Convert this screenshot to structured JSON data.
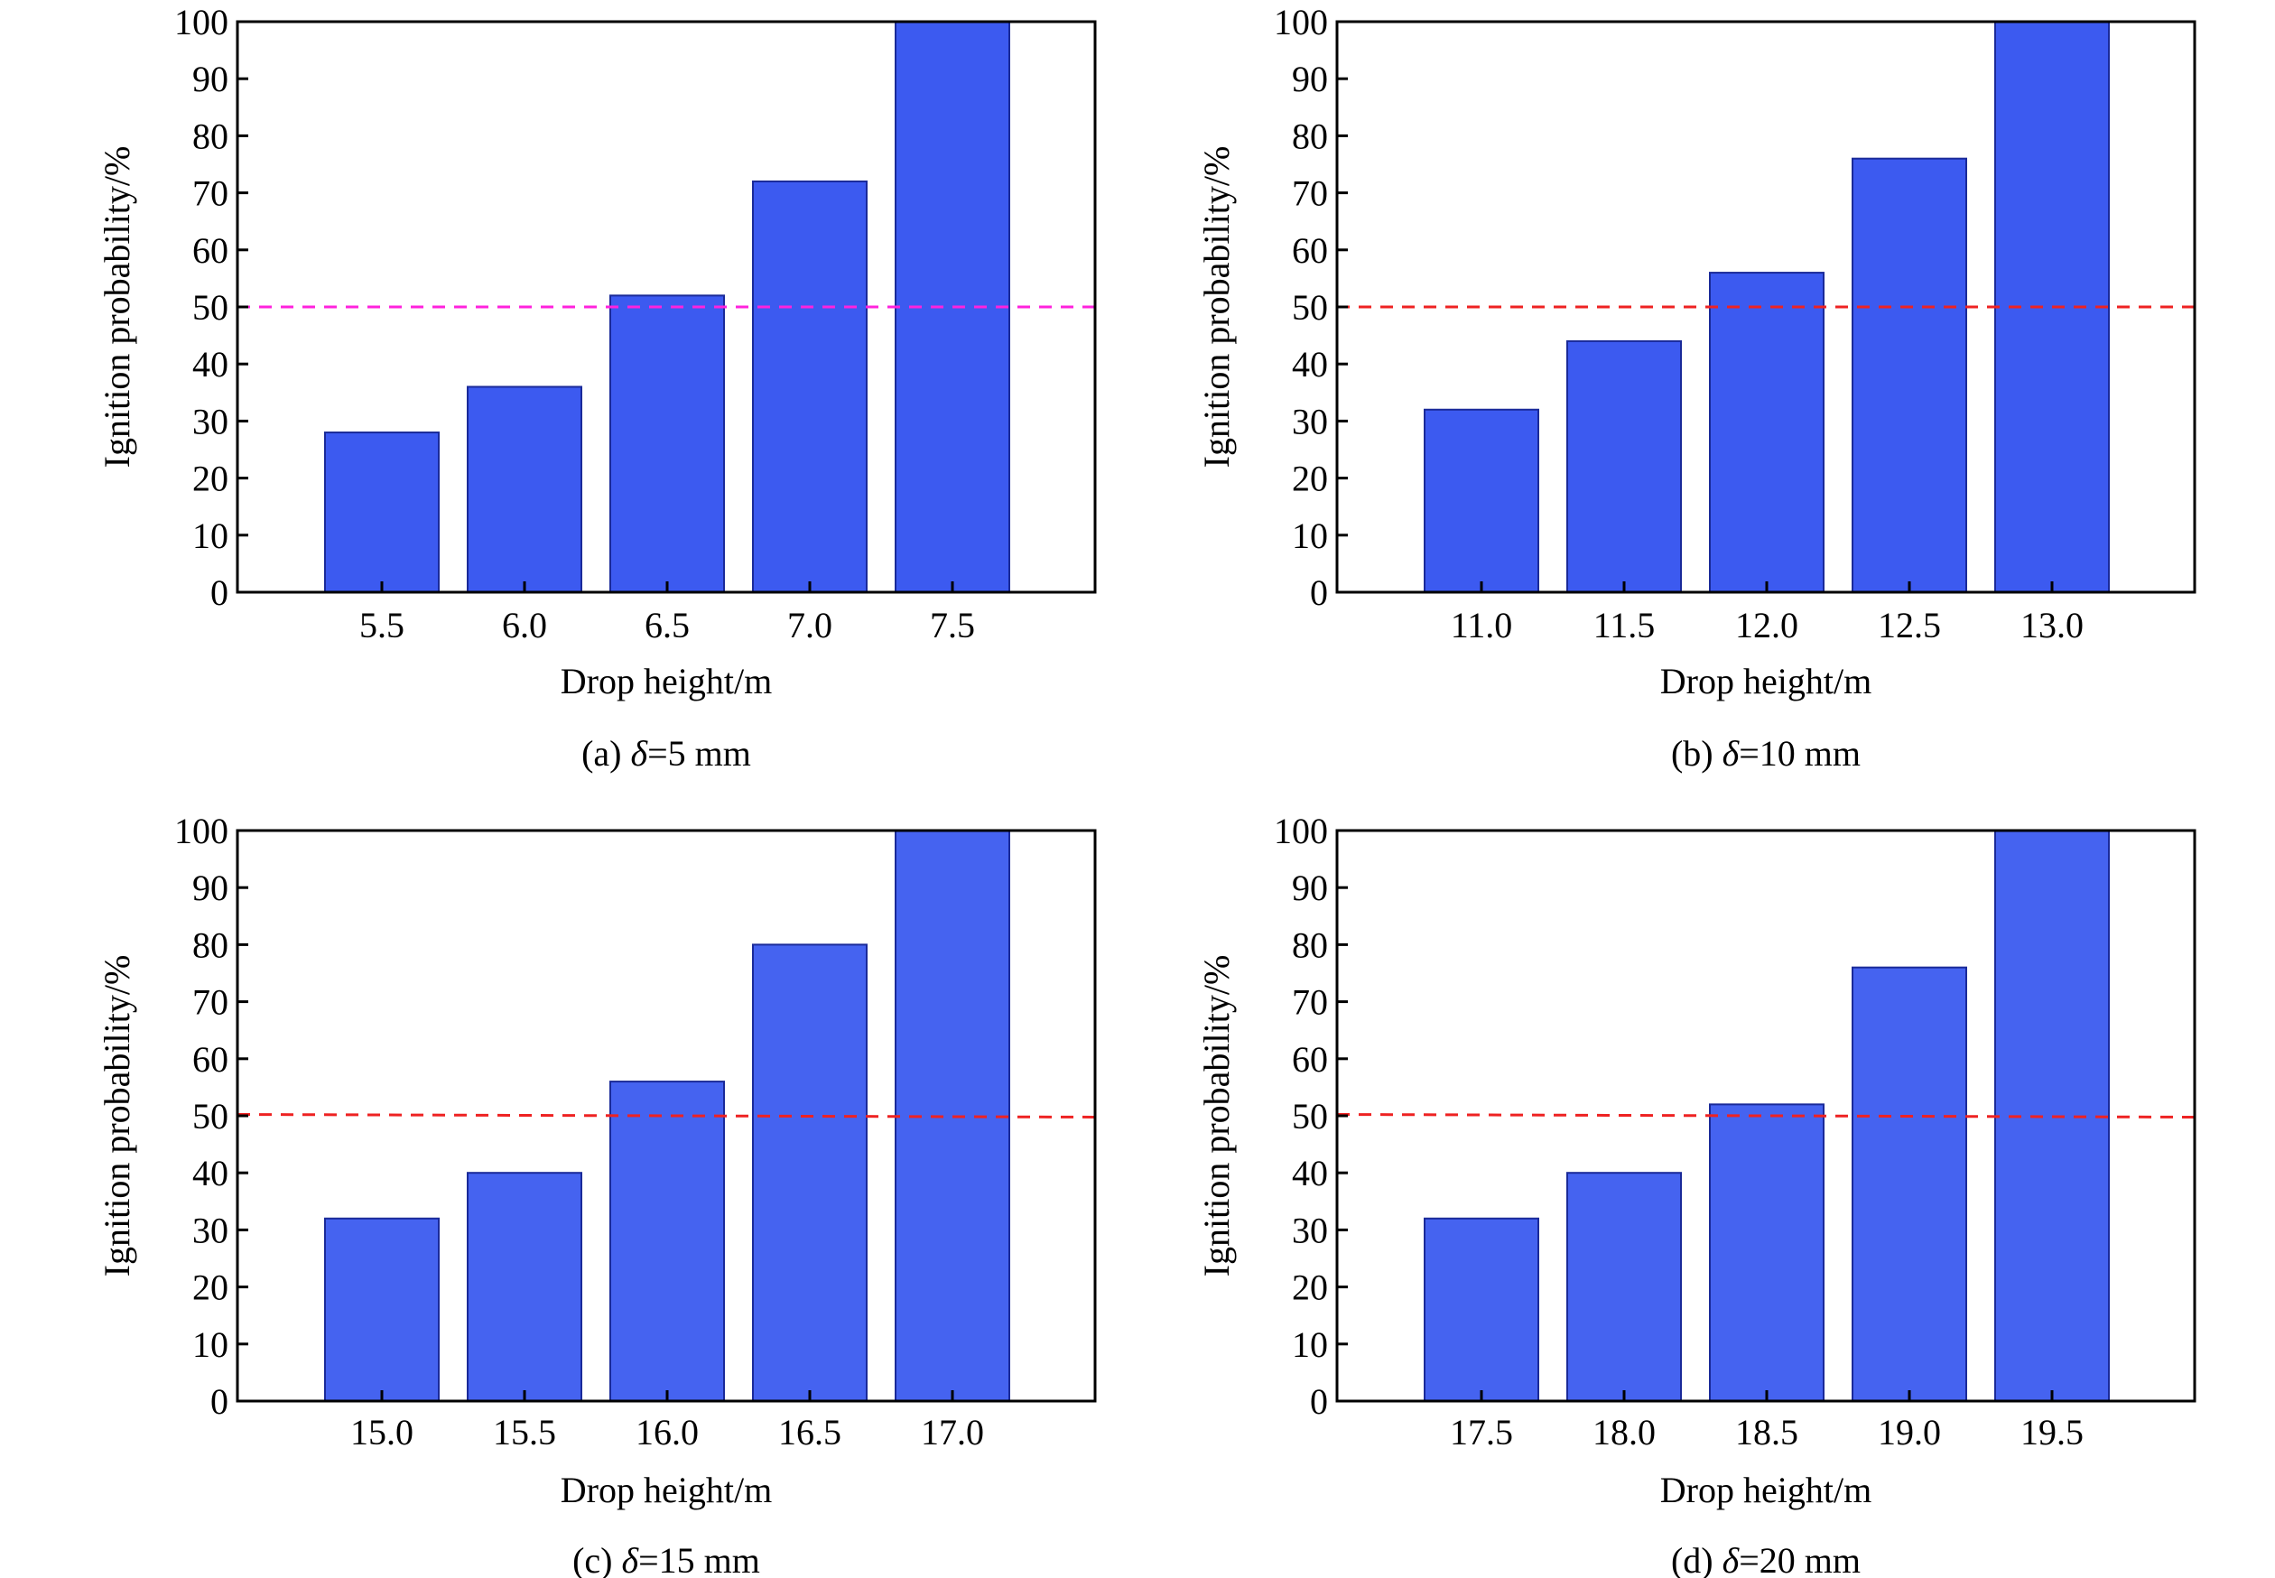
{
  "chart_data": [
    {
      "type": "bar",
      "title": "(a) δ=5 mm",
      "caption_prefix": "(a) ",
      "caption_symbol": "δ",
      "caption_suffix": "=5 mm",
      "xlabel": "Drop height/m",
      "ylabel": "Ignition probability/%",
      "categories": [
        "5.5",
        "6.0",
        "6.5",
        "7.0",
        "7.5"
      ],
      "values": [
        28,
        36,
        52,
        72,
        100
      ],
      "ylim": [
        0,
        100
      ],
      "yticks": [
        0,
        10,
        20,
        30,
        40,
        50,
        60,
        70,
        80,
        90,
        100
      ],
      "reference_line": 50,
      "bar_color": "#3c5af0",
      "line_color": "#ff22dd"
    },
    {
      "type": "bar",
      "title": "(b) δ=10 mm",
      "caption_prefix": "(b) ",
      "caption_symbol": "δ",
      "caption_suffix": "=10 mm",
      "xlabel": "Drop height/m",
      "ylabel": "Ignition probability/%",
      "categories": [
        "11.0",
        "11.5",
        "12.0",
        "12.5",
        "13.0"
      ],
      "values": [
        32,
        44,
        56,
        76,
        100
      ],
      "ylim": [
        0,
        100
      ],
      "yticks": [
        0,
        10,
        20,
        30,
        40,
        50,
        60,
        70,
        80,
        90,
        100
      ],
      "reference_line": 50,
      "bar_color": "#3c5af0",
      "line_color": "#ee2222"
    },
    {
      "type": "bar",
      "title": "(c) δ=15 mm",
      "caption_prefix": "(c) ",
      "caption_symbol": "δ",
      "caption_suffix": "=15 mm",
      "xlabel": "Drop height/m",
      "ylabel": "Ignition probability/%",
      "categories": [
        "15.0",
        "15.5",
        "16.0",
        "16.5",
        "17.0"
      ],
      "values": [
        32,
        40,
        56,
        80,
        100
      ],
      "ylim": [
        0,
        100
      ],
      "yticks": [
        0,
        10,
        20,
        30,
        40,
        50,
        60,
        70,
        80,
        90,
        100
      ],
      "reference_line": 50,
      "bar_color": "#4563f0",
      "line_color": "#ee2222"
    },
    {
      "type": "bar",
      "title": "(d) δ=20 mm",
      "caption_prefix": "(d) ",
      "caption_symbol": "δ",
      "caption_suffix": "=20 mm",
      "xlabel": "Drop height/m",
      "ylabel": "Ignition probability/%",
      "categories": [
        "17.5",
        "18.0",
        "18.5",
        "19.0",
        "19.5"
      ],
      "values": [
        32,
        40,
        52,
        76,
        100
      ],
      "ylim": [
        0,
        100
      ],
      "yticks": [
        0,
        10,
        20,
        30,
        40,
        50,
        60,
        70,
        80,
        90,
        100
      ],
      "reference_line": 50,
      "bar_color": "#4563f0",
      "line_color": "#ee2222"
    }
  ]
}
